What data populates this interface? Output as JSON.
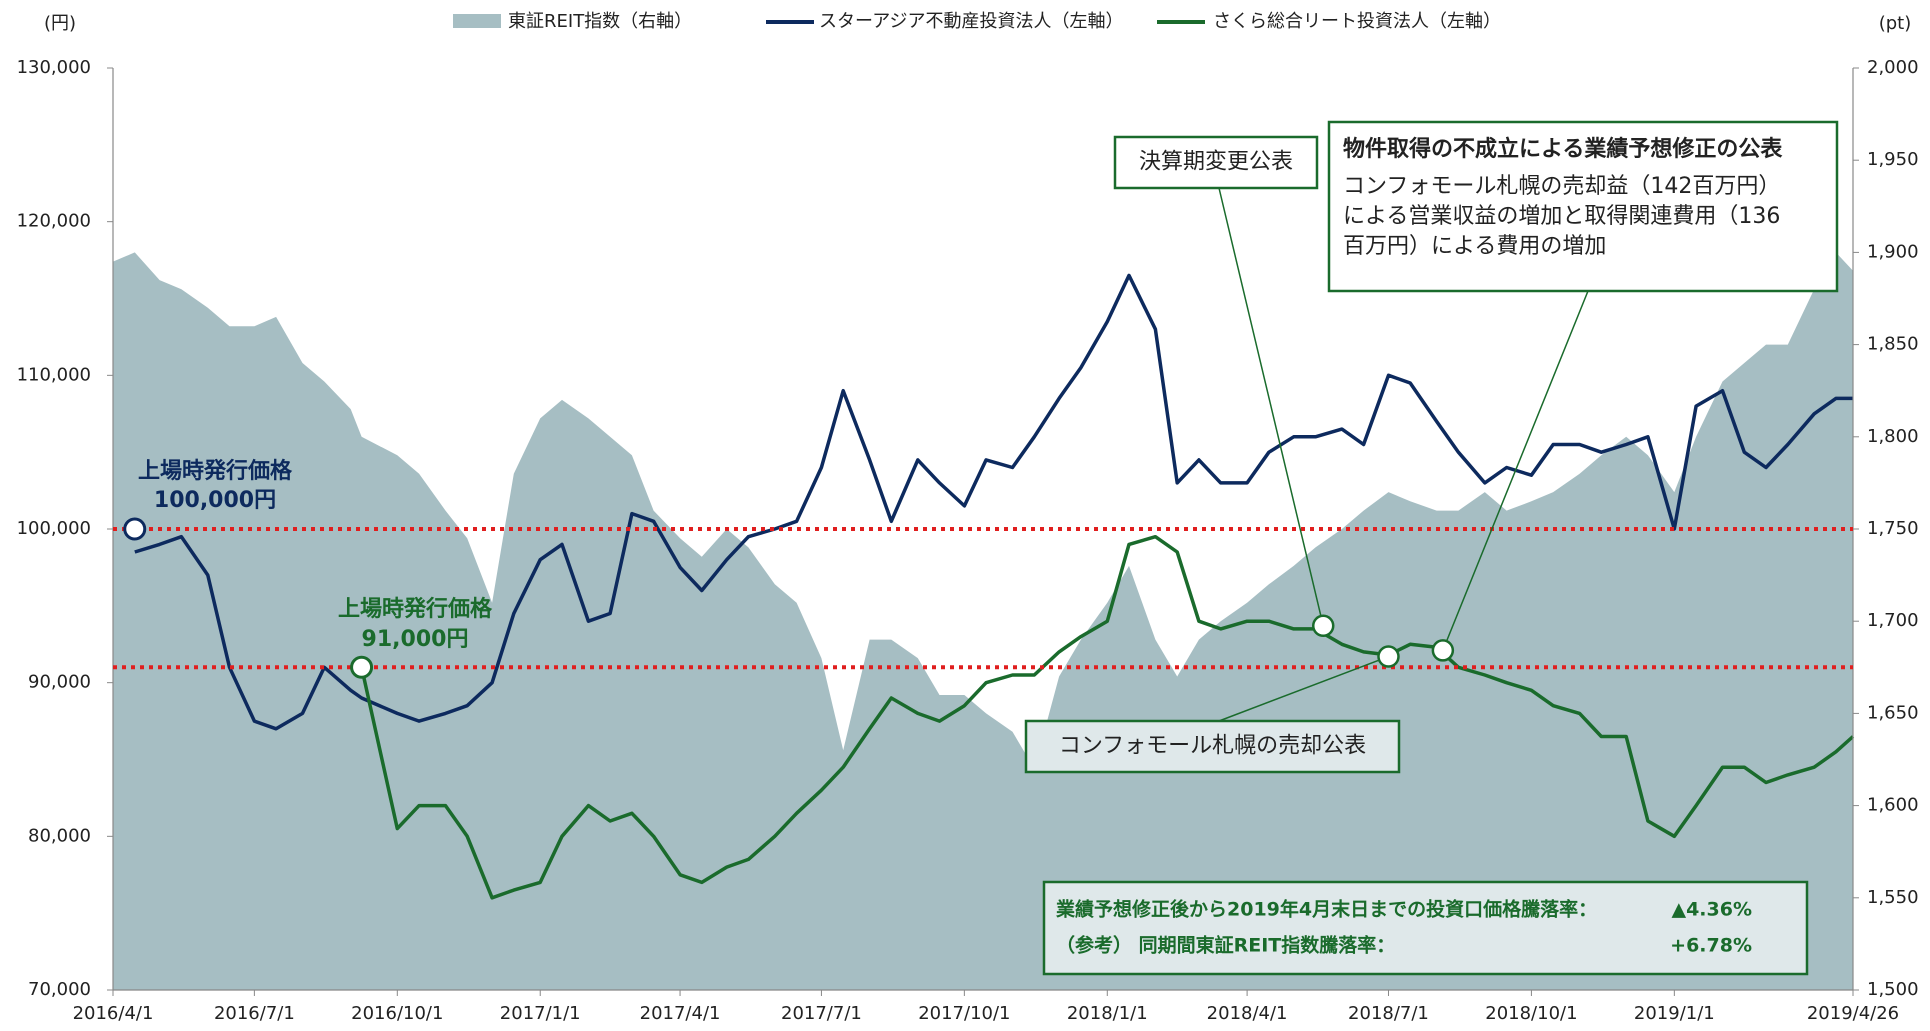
{
  "chart_data": {
    "type": "line",
    "y_unit": "(円)",
    "y2_unit": "(pt)",
    "x": [
      "2016/4/1",
      "2016/4/15",
      "2016/5/1",
      "2016/5/15",
      "2016/6/1",
      "2016/6/15",
      "2016/7/1",
      "2016/7/15",
      "2016/8/1",
      "2016/8/15",
      "2016/9/1",
      "2016/9/8",
      "2016/10/1",
      "2016/10/15",
      "2016/11/1",
      "2016/11/15",
      "2016/12/1",
      "2016/12/15",
      "2017/1/1",
      "2017/1/15",
      "2017/2/1",
      "2017/2/15",
      "2017/3/1",
      "2017/3/15",
      "2017/4/1",
      "2017/4/15",
      "2017/5/1",
      "2017/5/15",
      "2017/6/1",
      "2017/6/15",
      "2017/7/1",
      "2017/7/15",
      "2017/8/1",
      "2017/8/15",
      "2017/9/1",
      "2017/9/15",
      "2017/10/1",
      "2017/10/15",
      "2017/11/1",
      "2017/11/15",
      "2017/12/1",
      "2017/12/15",
      "2018/1/1",
      "2018/1/15",
      "2018/2/1",
      "2018/2/15",
      "2018/3/1",
      "2018/3/15",
      "2018/4/1",
      "2018/4/15",
      "2018/5/1",
      "2018/5/15",
      "2018/6/1",
      "2018/6/15",
      "2018/7/1",
      "2018/7/15",
      "2018/8/1",
      "2018/8/15",
      "2018/9/1",
      "2018/9/15",
      "2018/10/1",
      "2018/10/15",
      "2018/11/1",
      "2018/11/15",
      "2018/12/1",
      "2018/12/15",
      "2019/1/1",
      "2019/1/15",
      "2019/2/1",
      "2019/2/15",
      "2019/3/1",
      "2019/3/15",
      "2019/4/1",
      "2019/4/15",
      "2019/4/26"
    ],
    "series": [
      {
        "name": "東証REIT指数（右軸）",
        "type": "area",
        "axis": "y2",
        "color": "#a6bec3",
        "values": [
          1895,
          1900,
          1885,
          1880,
          1870,
          1860,
          1860,
          1865,
          1840,
          1830,
          1815,
          1800,
          1790,
          1780,
          1760,
          1745,
          1710,
          1780,
          1810,
          1820,
          1810,
          1800,
          1790,
          1760,
          1745,
          1735,
          1750,
          1740,
          1720,
          1710,
          1680,
          1630,
          1690,
          1690,
          1680,
          1660,
          1660,
          1650,
          1640,
          1620,
          1670,
          1690,
          1710,
          1730,
          1690,
          1670,
          1690,
          1700,
          1710,
          1720,
          1730,
          1740,
          1750,
          1760,
          1770,
          1765,
          1760,
          1760,
          1770,
          1760,
          1765,
          1770,
          1780,
          1790,
          1800,
          1790,
          1770,
          1800,
          1830,
          1840,
          1850,
          1850,
          1880,
          1900,
          1890
        ]
      },
      {
        "name": "スターアジア不動産投資法人（左軸）",
        "type": "line",
        "axis": "y",
        "color": "#0d2a5e",
        "values": [
          null,
          98500,
          99000,
          99500,
          97000,
          91000,
          87500,
          87000,
          88000,
          91000,
          89500,
          89000,
          88000,
          87500,
          88000,
          88500,
          90000,
          94500,
          98000,
          99000,
          94000,
          94500,
          101000,
          100500,
          97500,
          96000,
          98000,
          99500,
          100000,
          100500,
          104000,
          109000,
          104500,
          100500,
          104500,
          103000,
          101500,
          104500,
          104000,
          106000,
          108500,
          110500,
          113500,
          116500,
          113000,
          103000,
          104500,
          103000,
          103000,
          105000,
          106000,
          106000,
          106500,
          105500,
          110000,
          109500,
          107000,
          105000,
          103000,
          104000,
          103500,
          105500,
          105500,
          105000,
          105500,
          106000,
          100000,
          108000,
          109000,
          105000,
          104000,
          105500,
          107500,
          108500,
          108500
        ]
      },
      {
        "name": "さくら総合リート投資法人（左軸）",
        "type": "line",
        "axis": "y",
        "color": "#1a6b2c",
        "values": [
          null,
          null,
          null,
          null,
          null,
          null,
          null,
          null,
          null,
          null,
          null,
          91000,
          80500,
          82000,
          82000,
          80000,
          76000,
          76500,
          77000,
          80000,
          82000,
          81000,
          81500,
          80000,
          77500,
          77000,
          78000,
          78500,
          80000,
          81500,
          83000,
          84500,
          87000,
          89000,
          88000,
          87500,
          88500,
          90000,
          90500,
          90500,
          92000,
          93000,
          94000,
          99000,
          99500,
          98500,
          94000,
          93500,
          94000,
          94000,
          93500,
          93500,
          92500,
          92000,
          91800,
          92500,
          92300,
          91000,
          90500,
          90000,
          89500,
          88500,
          88000,
          86500,
          86500,
          81000,
          80000,
          82000,
          84500,
          84500,
          83500,
          84000,
          84500,
          85500,
          86500
        ]
      }
    ],
    "xlim": [
      "2016/4/1",
      "2019/4/26"
    ],
    "xticks": [
      "2016/4/1",
      "2016/7/1",
      "2016/10/1",
      "2017/1/1",
      "2017/4/1",
      "2017/7/1",
      "2017/10/1",
      "2018/1/1",
      "2018/4/1",
      "2018/7/1",
      "2018/10/1",
      "2019/1/1",
      "2019/4/26"
    ],
    "ylim": [
      70000,
      130000
    ],
    "yticks": [
      {
        "value": 70000,
        "label": "70,000"
      },
      {
        "value": 80000,
        "label": "80,000"
      },
      {
        "value": 90000,
        "label": "90,000"
      },
      {
        "value": 100000,
        "label": "100,000"
      },
      {
        "value": 110000,
        "label": "110,000"
      },
      {
        "value": 120000,
        "label": "120,000"
      },
      {
        "value": 130000,
        "label": "130,000"
      }
    ],
    "y2lim": [
      1500,
      2000
    ],
    "y2ticks": [
      {
        "value": 1500,
        "label": "1,500"
      },
      {
        "value": 1550,
        "label": "1,550"
      },
      {
        "value": 1600,
        "label": "1,600"
      },
      {
        "value": 1650,
        "label": "1,650"
      },
      {
        "value": 1700,
        "label": "1,700"
      },
      {
        "value": 1750,
        "label": "1,750"
      },
      {
        "value": 1800,
        "label": "1,800"
      },
      {
        "value": 1850,
        "label": "1,850"
      },
      {
        "value": 1900,
        "label": "1,900"
      },
      {
        "value": 1950,
        "label": "1,950"
      },
      {
        "value": 2000,
        "label": "2,000"
      }
    ],
    "grid": false,
    "reference_lines": [
      {
        "text": "上場時発行価格",
        "label": "100,000円",
        "x": "2016/4/15",
        "value": 100000,
        "color": "#0d2a5e"
      },
      {
        "text": "上場時発行価格",
        "label": "91,000円",
        "x": "2016/9/8",
        "value": 91000,
        "color": "#1a6b2c"
      }
    ],
    "reference_color": "#e01e1e",
    "callouts": [
      {
        "text": "決算期変更公表",
        "x": "2018/5/20",
        "value": 93700
      },
      {
        "text": "物件取得の不成立による業績予想修正の公表",
        "body": [
          "コンフォモール札幌の売却益（142百万円）",
          "による営業収益の増加と取得関連費用（136",
          "百万円）による費用の増加"
        ],
        "x": "2018/8/5",
        "value": 92100
      },
      {
        "text": "コンフォモール札幌の売却公表",
        "x": "2018/7/1",
        "value": 91700
      }
    ],
    "summary": [
      [
        "業績予想修正後から2019年4月末日までの投資口価格騰落率：",
        "▲4.36%"
      ],
      [
        "（参考） 同期間東証REIT指数騰落率：",
        "+6.78%"
      ]
    ]
  }
}
